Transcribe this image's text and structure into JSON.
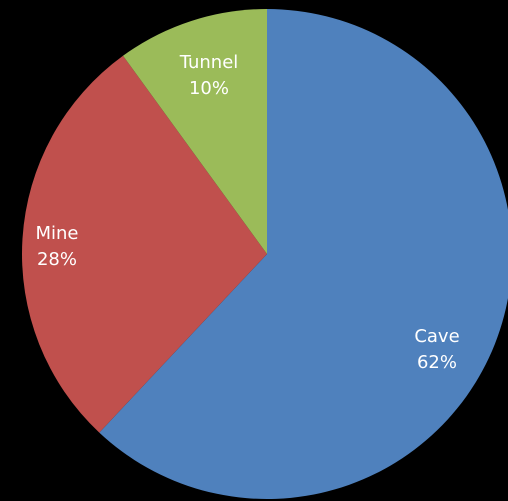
{
  "chart_data": {
    "type": "pie",
    "title": "",
    "start_angle_deg": 0,
    "direction": "clockwise",
    "legend": "none",
    "slices": [
      {
        "label": "Cave",
        "value": 62,
        "value_label": "62%",
        "color": "#4f81bd"
      },
      {
        "label": "Mine",
        "value": 28,
        "value_label": "28%",
        "color": "#c0504d"
      },
      {
        "label": "Tunnel",
        "value": 10,
        "value_label": "10%",
        "color": "#9bbb59"
      }
    ]
  },
  "colors": {
    "background": "#000000",
    "label_text": "#ffffff"
  }
}
